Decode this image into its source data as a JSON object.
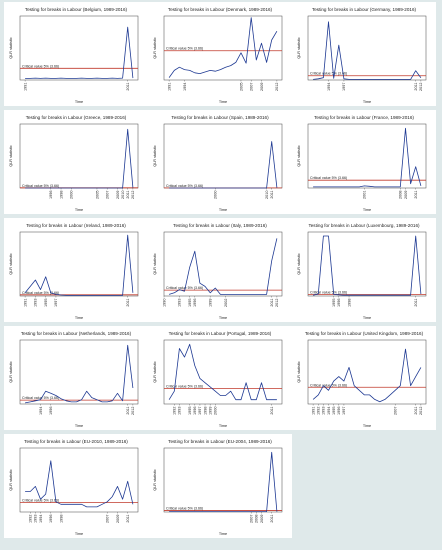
{
  "figure": {
    "background": "#dfe9ea",
    "panel_background": "#ffffff",
    "series_color": "#1f3a93",
    "critical_color": "#c0392b",
    "ylabel": "QLR statistic",
    "xlabel": "Time",
    "critical_label": "Critical value 5% (3.66)"
  },
  "chart_data": [
    {
      "type": "line",
      "title": "Testing for breaks in Labour (Belgium, 1989-2016)",
      "xlabel": "Time",
      "ylabel": "QLR statistic",
      "x": [
        1991,
        1992,
        1993,
        1994,
        1995,
        1996,
        1997,
        1998,
        1999,
        2000,
        2001,
        2002,
        2003,
        2004,
        2005,
        2006,
        2007,
        2008,
        2009,
        2010,
        2011,
        2012
      ],
      "series": [
        {
          "values": [
            0.5,
            0.5,
            0.6,
            0.5,
            0.6,
            0.5,
            0.5,
            0.6,
            0.5,
            0.5,
            0.5,
            0.6,
            0.5,
            0.5,
            0.6,
            0.5,
            0.5,
            0.6,
            0.5,
            0.6,
            16.5,
            0.6
          ]
        }
      ],
      "critical_value": 3.66,
      "ylim": [
        0,
        20
      ],
      "ticks": [
        1991,
        2011
      ]
    },
    {
      "type": "line",
      "title": "Testing for breaks in Labour (Denmark, 1989-2016)",
      "xlabel": "Time",
      "ylabel": "QLR statistic",
      "x": [
        1991,
        1992,
        1993,
        1994,
        1995,
        1996,
        1997,
        1998,
        1999,
        2000,
        2001,
        2002,
        2003,
        2004,
        2005,
        2006,
        2007,
        2008,
        2009,
        2010,
        2011,
        2012
      ],
      "series": [
        {
          "values": [
            0.3,
            1.2,
            1.6,
            1.3,
            1.2,
            0.9,
            0.8,
            1.0,
            1.2,
            1.1,
            1.3,
            1.6,
            1.8,
            2.2,
            3.4,
            2.1,
            7.8,
            2.5,
            4.6,
            2.2,
            5.0,
            6.1
          ]
        }
      ],
      "critical_value": 3.66,
      "ylim": [
        0,
        8
      ],
      "ticks": [
        1991,
        1994,
        2005,
        2007,
        2009,
        2012
      ]
    },
    {
      "type": "line",
      "title": "Testing for breaks in Labour (Germany, 1989-2016)",
      "xlabel": "Time",
      "ylabel": "QLR statistic",
      "x": [
        1991,
        1992,
        1993,
        1994,
        1995,
        1996,
        1997,
        1998,
        1999,
        2000,
        2001,
        2002,
        2003,
        2004,
        2005,
        2006,
        2007,
        2008,
        2009,
        2010,
        2011,
        2012
      ],
      "series": [
        {
          "values": [
            0.5,
            1.0,
            2.0,
            50.0,
            1.5,
            30.0,
            1.0,
            0.5,
            0.5,
            0.5,
            0.5,
            0.5,
            0.5,
            0.5,
            0.5,
            0.5,
            0.5,
            0.5,
            0.5,
            0.5,
            8.0,
            2.0
          ]
        }
      ],
      "critical_value": 3.66,
      "ylim": [
        0,
        55
      ],
      "ticks": [
        1994,
        1997,
        2011,
        2012
      ]
    },
    {
      "type": "line",
      "title": "Testing for breaks in Labour (Greece, 1989-2016)",
      "xlabel": "Time",
      "ylabel": "QLR statistic",
      "x": [
        1991,
        1992,
        1993,
        1994,
        1995,
        1996,
        1997,
        1998,
        1999,
        2000,
        2001,
        2002,
        2003,
        2004,
        2005,
        2006,
        2007,
        2008,
        2009,
        2010,
        2011,
        2012
      ],
      "series": [
        {
          "values": [
            0.5,
            0.5,
            0.5,
            0.5,
            0.5,
            0.5,
            0.5,
            0.5,
            0.5,
            0.5,
            0.5,
            0.5,
            0.5,
            0.5,
            0.5,
            0.5,
            0.5,
            0.5,
            0.5,
            0.5,
            1100,
            5
          ]
        }
      ],
      "critical_value": 3.66,
      "ylim": [
        0,
        1200
      ],
      "ticks": [
        1996,
        1998,
        2000,
        2005,
        2007,
        2009,
        2010,
        2011,
        2012
      ]
    },
    {
      "type": "line",
      "title": "Testing for breaks in Labour (Spain, 1989-2016)",
      "xlabel": "Time",
      "ylabel": "QLR statistic",
      "x": [
        1991,
        1992,
        1993,
        1994,
        1995,
        1996,
        1997,
        1998,
        1999,
        2000,
        2001,
        2002,
        2003,
        2004,
        2005,
        2006,
        2007,
        2008,
        2009,
        2010,
        2011,
        2012
      ],
      "series": [
        {
          "values": [
            1,
            1,
            1,
            1,
            1,
            1,
            1,
            1,
            1,
            1,
            1,
            1,
            1,
            1,
            1,
            1,
            1,
            1,
            1,
            1,
            1600,
            10
          ]
        }
      ],
      "critical_value": 3.66,
      "ylim": [
        0,
        2200
      ],
      "ticks": [
        2000,
        2010,
        2011
      ]
    },
    {
      "type": "line",
      "title": "Testing for breaks in Labour (France, 1989-2016)",
      "xlabel": "Time",
      "ylabel": "QLR statistic",
      "x": [
        1991,
        1992,
        1993,
        1994,
        1995,
        1996,
        1997,
        1998,
        1999,
        2000,
        2001,
        2002,
        2003,
        2004,
        2005,
        2006,
        2007,
        2008,
        2009,
        2010,
        2011,
        2012
      ],
      "series": [
        {
          "values": [
            0.5,
            0.5,
            0.5,
            0.5,
            0.5,
            0.5,
            0.5,
            0.5,
            0.5,
            0.5,
            1.0,
            0.8,
            0.5,
            0.5,
            0.5,
            0.5,
            0.5,
            0.5,
            28.0,
            2.0,
            10.0,
            1.0
          ]
        }
      ],
      "critical_value": 3.66,
      "ylim": [
        0,
        30
      ],
      "ticks": [
        2001,
        2008,
        2009,
        2011
      ]
    },
    {
      "type": "line",
      "title": "Testing for breaks in Labour (Ireland, 1989-2016)",
      "xlabel": "Time",
      "ylabel": "QLR statistic",
      "x": [
        1991,
        1992,
        1993,
        1994,
        1995,
        1996,
        1997,
        1998,
        1999,
        2000,
        2001,
        2002,
        2003,
        2004,
        2005,
        2006,
        2007,
        2008,
        2009,
        2010,
        2011,
        2012
      ],
      "series": [
        {
          "values": [
            10,
            30,
            50,
            20,
            60,
            10,
            5,
            3,
            2,
            2,
            2,
            2,
            2,
            2,
            2,
            2,
            2,
            2,
            2,
            2,
            190,
            10
          ]
        }
      ],
      "critical_value": 3.66,
      "ylim": [
        0,
        200
      ],
      "ticks": [
        1991,
        1993,
        1995,
        1997,
        2011
      ]
    },
    {
      "type": "line",
      "title": "Testing for breaks in Labour (Italy, 1989-2016)",
      "xlabel": "Time",
      "ylabel": "QLR statistic",
      "x": [
        1991,
        1992,
        1993,
        1994,
        1995,
        1996,
        1997,
        1998,
        1999,
        2000,
        2001,
        2002,
        2003,
        2004,
        2005,
        2006,
        2007,
        2008,
        2009,
        2010,
        2011,
        2012
      ],
      "series": [
        {
          "values": [
            1,
            2,
            4,
            3,
            18,
            28,
            8,
            6,
            2,
            5,
            1,
            1,
            1,
            1,
            1,
            1,
            1,
            1,
            1,
            1,
            22,
            36
          ]
        }
      ],
      "critical_value": 3.66,
      "ylim": [
        0,
        40
      ],
      "ticks": [
        1990,
        1993,
        1995,
        1996,
        1999,
        2002,
        2011,
        2012
      ]
    },
    {
      "type": "line",
      "title": "Testing for breaks in Labour (Luxembourg, 1989-2016)",
      "xlabel": "Time",
      "ylabel": "QLR statistic",
      "x": [
        1991,
        1992,
        1993,
        1994,
        1995,
        1996,
        1997,
        1998,
        1999,
        2000,
        2001,
        2002,
        2003,
        2004,
        2005,
        2006,
        2007,
        2008,
        2009,
        2010,
        2011,
        2012
      ],
      "series": [
        {
          "values": [
            2,
            5,
            150,
            150,
            4,
            3,
            2,
            2,
            2,
            2,
            2,
            2,
            2,
            2,
            2,
            2,
            2,
            2,
            2,
            2,
            150,
            5
          ]
        }
      ],
      "critical_value": 3.66,
      "ylim": [
        0,
        160
      ],
      "ticks": [
        1995,
        1996,
        1998,
        2011
      ]
    },
    {
      "type": "line",
      "title": "Testing for breaks in Labour (Netherlands, 1989-2016)",
      "xlabel": "Time",
      "ylabel": "QLR statistic",
      "x": [
        1991,
        1992,
        1993,
        1994,
        1995,
        1996,
        1997,
        1998,
        1999,
        2000,
        2001,
        2002,
        2003,
        2004,
        2005,
        2006,
        2007,
        2008,
        2009,
        2010,
        2011,
        2012
      ],
      "series": [
        {
          "values": [
            1,
            2,
            3,
            4,
            12,
            10,
            8,
            5,
            3,
            2,
            2,
            4,
            12,
            6,
            4,
            2,
            2,
            3,
            10,
            3,
            55,
            15
          ]
        }
      ],
      "critical_value": 3.66,
      "ylim": [
        0,
        60
      ],
      "ticks": [
        1994,
        1996,
        2011,
        2012
      ]
    },
    {
      "type": "line",
      "title": "Testing for breaks in Labour (Portugal, 1989-2016)",
      "xlabel": "Time",
      "ylabel": "QLR statistic",
      "x": [
        1991,
        1992,
        1993,
        1994,
        1995,
        1996,
        1997,
        1998,
        1999,
        2000,
        2001,
        2002,
        2003,
        2004,
        2005,
        2006,
        2007,
        2008,
        2009,
        2010,
        2011,
        2012
      ],
      "series": [
        {
          "values": [
            1,
            3,
            13,
            11,
            14,
            9,
            6,
            5,
            4,
            3,
            2,
            2,
            3,
            1,
            1,
            5,
            1,
            1,
            5,
            1,
            1,
            1
          ]
        }
      ],
      "critical_value": 3.66,
      "ylim": [
        0,
        15
      ],
      "ticks": [
        1992,
        1993,
        1995,
        1996,
        1997,
        1998,
        1999,
        2000,
        2011
      ]
    },
    {
      "type": "line",
      "title": "Testing for breaks in Labour (United Kingdom, 1989-2016)",
      "xlabel": "Time",
      "ylabel": "QLR statistic",
      "x": [
        1991,
        1992,
        1993,
        1994,
        1995,
        1996,
        1997,
        1998,
        1999,
        2000,
        2001,
        2002,
        2003,
        2004,
        2005,
        2006,
        2007,
        2008,
        2009,
        2010,
        2011,
        2012
      ],
      "series": [
        {
          "values": [
            1,
            2,
            4,
            3,
            5,
            6,
            5,
            8,
            4,
            3,
            2,
            2,
            1,
            0.5,
            1,
            2,
            3,
            4,
            12,
            4,
            6,
            8
          ]
        }
      ],
      "critical_value": 3.66,
      "ylim": [
        0,
        14
      ],
      "ticks": [
        1991,
        1992,
        1993,
        1994,
        1995,
        1996,
        1997,
        2007,
        2011,
        2012
      ]
    },
    {
      "type": "line",
      "title": "Testing for breaks in Labour (EU-2010, 1989-2016)",
      "xlabel": "Time",
      "ylabel": "QLR statistic",
      "x": [
        1991,
        1992,
        1993,
        1994,
        1995,
        1996,
        1997,
        1998,
        1999,
        2000,
        2001,
        2002,
        2003,
        2004,
        2005,
        2006,
        2007,
        2008,
        2009,
        2010,
        2011,
        2012
      ],
      "series": [
        {
          "values": [
            8,
            8,
            10,
            5,
            7,
            20,
            4,
            3,
            3,
            3,
            3,
            3,
            2,
            2,
            2,
            3,
            4,
            6,
            10,
            5,
            12,
            3
          ]
        }
      ],
      "critical_value": 3.66,
      "ylim": [
        0,
        25
      ],
      "ticks": [
        1992,
        1993,
        1994,
        1996,
        1998,
        2007,
        2009,
        2011
      ]
    },
    {
      "type": "line",
      "title": "Testing for breaks in Labour (EU-2004, 1989-2016)",
      "xlabel": "Time",
      "ylabel": "QLR statistic",
      "x": [
        1991,
        1992,
        1993,
        1994,
        1995,
        1996,
        1997,
        1998,
        1999,
        2000,
        2001,
        2002,
        2003,
        2004,
        2005,
        2006,
        2007,
        2008,
        2009,
        2010,
        2011,
        2012
      ],
      "series": [
        {
          "values": [
            1,
            1,
            1,
            1,
            1,
            1,
            1,
            1,
            1,
            1,
            1,
            1,
            1,
            1,
            1,
            1,
            1,
            1,
            1,
            1,
            140,
            1
          ]
        }
      ],
      "critical_value": 3.66,
      "ylim": [
        0,
        150
      ],
      "ticks": [
        2007,
        2008,
        2009,
        2011
      ]
    }
  ]
}
